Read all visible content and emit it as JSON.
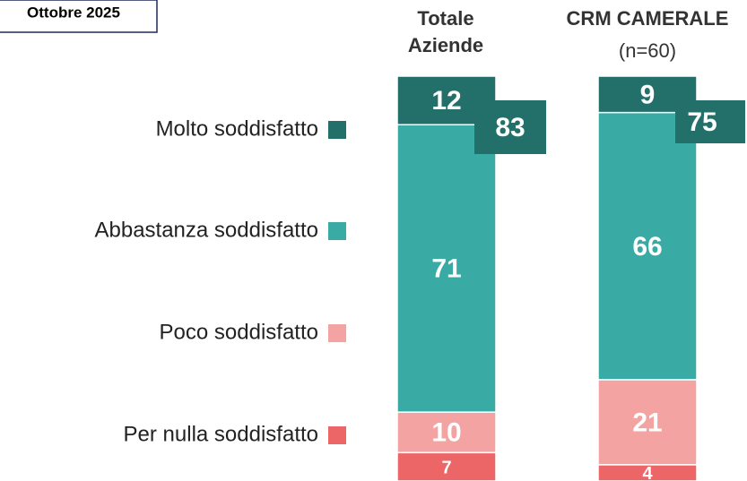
{
  "date_label": "Ottobre 2025",
  "chart_data": {
    "type": "stacked-bar",
    "categories": [
      "Totale Aziende",
      "CRM CAMERALE"
    ],
    "notes": [
      null,
      "(n=60)"
    ],
    "series": [
      {
        "name": "Molto soddisfatto",
        "color": "#23706a",
        "values": [
          12,
          9
        ]
      },
      {
        "name": "Abbastanza soddisfatto",
        "color": "#3aaba4",
        "values": [
          71,
          66
        ]
      },
      {
        "name": "Poco soddisfatto",
        "color": "#f4a3a3",
        "values": [
          10,
          21
        ]
      },
      {
        "name": "Per nulla soddisfatto",
        "color": "#ec6567",
        "values": [
          7,
          4
        ]
      }
    ],
    "totals_satisfied": [
      83,
      75
    ]
  }
}
